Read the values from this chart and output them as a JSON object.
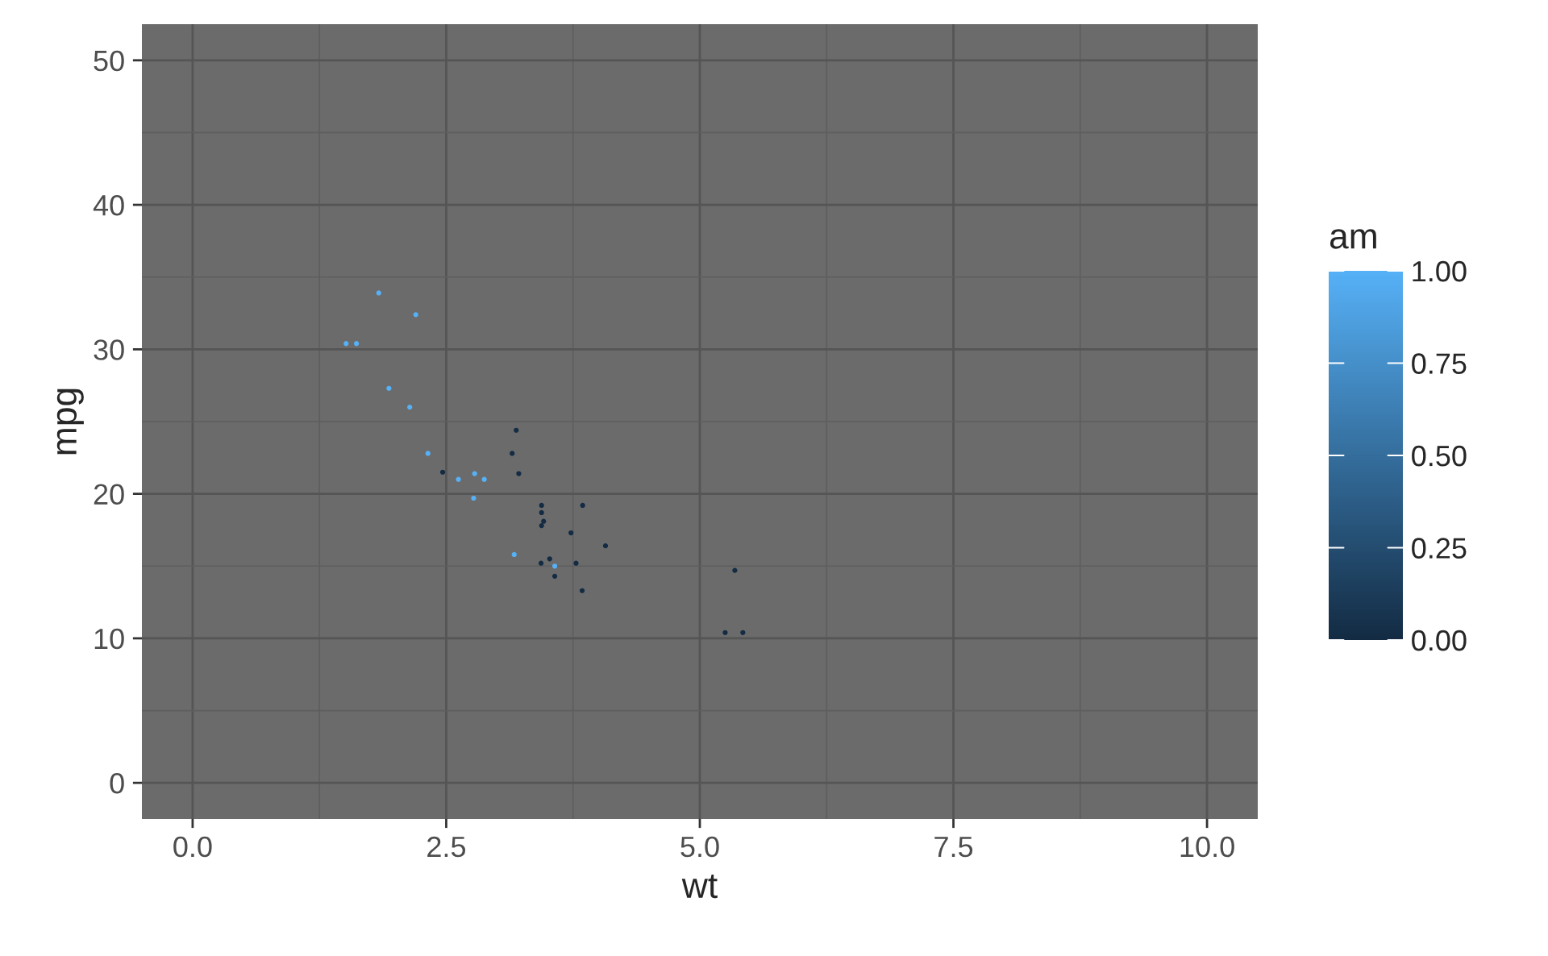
{
  "chart_data": {
    "type": "scatter",
    "xlabel": "wt",
    "ylabel": "mpg",
    "clabel": "am",
    "x": [
      2.62,
      2.875,
      2.32,
      3.215,
      3.44,
      3.46,
      3.57,
      3.19,
      3.15,
      3.44,
      3.44,
      4.07,
      3.73,
      3.78,
      5.25,
      5.424,
      5.345,
      2.2,
      1.615,
      1.835,
      2.465,
      3.52,
      3.435,
      3.84,
      3.845,
      1.935,
      2.14,
      1.513,
      3.17,
      2.77,
      3.57,
      2.78
    ],
    "values": [
      21.0,
      21.0,
      22.8,
      21.4,
      18.7,
      18.1,
      14.3,
      24.4,
      22.8,
      19.2,
      17.8,
      16.4,
      17.3,
      15.2,
      10.4,
      10.4,
      14.7,
      32.4,
      30.4,
      33.9,
      21.5,
      15.5,
      15.2,
      13.3,
      19.2,
      27.3,
      26.0,
      30.4,
      15.8,
      19.7,
      15.0,
      21.4
    ],
    "cvalues": [
      1,
      1,
      1,
      0,
      0,
      0,
      0,
      0,
      0,
      0,
      0,
      0,
      0,
      0,
      0,
      0,
      0,
      1,
      1,
      1,
      0,
      0,
      0,
      0,
      0,
      1,
      1,
      1,
      1,
      1,
      1,
      1
    ],
    "colors": [
      "#56b1f7",
      "#56b1f7",
      "#56b1f7",
      "#132b43",
      "#132b43",
      "#132b43",
      "#132b43",
      "#132b43",
      "#132b43",
      "#132b43",
      "#132b43",
      "#132b43",
      "#132b43",
      "#132b43",
      "#132b43",
      "#132b43",
      "#132b43",
      "#56b1f7",
      "#56b1f7",
      "#56b1f7",
      "#132b43",
      "#132b43",
      "#132b43",
      "#132b43",
      "#132b43",
      "#56b1f7",
      "#56b1f7",
      "#56b1f7",
      "#56b1f7",
      "#56b1f7",
      "#56b1f7",
      "#56b1f7"
    ],
    "clim": [
      0,
      1
    ],
    "cticks": [
      {
        "value": 0,
        "label": "0.00"
      },
      {
        "value": 0.25,
        "label": "0.25"
      },
      {
        "value": 0.5,
        "label": "0.50"
      },
      {
        "value": 0.75,
        "label": "0.75"
      },
      {
        "value": 1,
        "label": "1.00"
      }
    ],
    "xlim": [
      -0.5,
      10.5
    ],
    "xticks": [
      {
        "value": 0,
        "label": "0.0"
      },
      {
        "value": 2.5,
        "label": "2.5"
      },
      {
        "value": 5,
        "label": "5.0"
      },
      {
        "value": 7.5,
        "label": "7.5"
      },
      {
        "value": 10,
        "label": "10.0"
      }
    ],
    "ylim": [
      -2.5,
      52.5
    ],
    "yticks": [
      0,
      10,
      20,
      30,
      40,
      50
    ],
    "grid": true
  }
}
